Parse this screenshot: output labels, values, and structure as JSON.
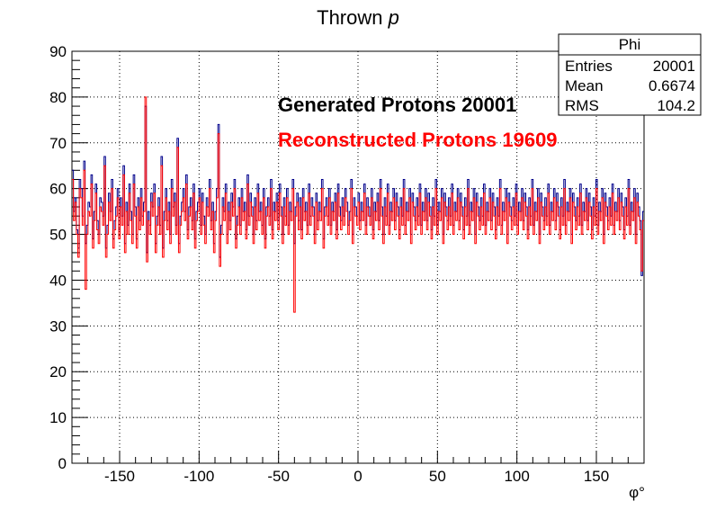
{
  "chart_data": {
    "type": "histogram",
    "title": "Thrown p",
    "title_main": "Thrown ",
    "title_italic": "p",
    "xlabel": "φ°",
    "ylabel": "",
    "xlim": [
      -180,
      180
    ],
    "ylim": [
      0,
      90
    ],
    "grid": true,
    "xticks": [
      -150,
      -100,
      -50,
      0,
      50,
      100,
      150
    ],
    "yticks": [
      0,
      10,
      20,
      30,
      40,
      50,
      60,
      70,
      80,
      90
    ],
    "bins": 360,
    "annotations": [
      {
        "text": "Generated Protons 20001",
        "color": "#000000"
      },
      {
        "text": "Reconstructed Protons 19609",
        "color": "#ff0000"
      }
    ],
    "stats_box": {
      "name": "Phi",
      "rows": [
        {
          "label": "Entries",
          "value": "20001"
        },
        {
          "label": "Mean",
          "value": "0.6674"
        },
        {
          "label": "RMS",
          "value": "104.2"
        }
      ]
    },
    "series": [
      {
        "label": "Generated Protons 20001",
        "color": "#00008b",
        "values": [
          64,
          55,
          58,
          51,
          47,
          62,
          60,
          54,
          66,
          48,
          52,
          57,
          56,
          63,
          49,
          55,
          61,
          53,
          50,
          58,
          57,
          54,
          67,
          47,
          52,
          59,
          55,
          62,
          49,
          53,
          56,
          60,
          51,
          58,
          54,
          65,
          48,
          57,
          52,
          61,
          55,
          50,
          63,
          56,
          49,
          58,
          53,
          60,
          54,
          57,
          78,
          46,
          55,
          52,
          59,
          56,
          61,
          48,
          54,
          58,
          52,
          67,
          47,
          55,
          60,
          53,
          57,
          50,
          62,
          56,
          59,
          52,
          71,
          48,
          54,
          57,
          60,
          55,
          63,
          51,
          56,
          58,
          53,
          61,
          49,
          55,
          57,
          60,
          52,
          59,
          54,
          50,
          58,
          56,
          62,
          53,
          57,
          48,
          55,
          60,
          74,
          45,
          52,
          58,
          55,
          61,
          50,
          57,
          53,
          59,
          56,
          62,
          49,
          54,
          58,
          52,
          60,
          55,
          57,
          51,
          63,
          54,
          59,
          56,
          50,
          58,
          53,
          61,
          55,
          57,
          52,
          60,
          49,
          56,
          58,
          54,
          62,
          51,
          57,
          55,
          59,
          53,
          61,
          56,
          50,
          58,
          54,
          60,
          52,
          57,
          55,
          62,
          48,
          56,
          59,
          53,
          58,
          51,
          60,
          55,
          57,
          52,
          61,
          54,
          58,
          56,
          50,
          59,
          53,
          57,
          55,
          62,
          49,
          56,
          58,
          54,
          60,
          52,
          57,
          55,
          59,
          51,
          61,
          56,
          53,
          58,
          54,
          60,
          57,
          52,
          55,
          62,
          50,
          58,
          56,
          54,
          59,
          53,
          57,
          55,
          61,
          52,
          58,
          56,
          54,
          60,
          51,
          57,
          55,
          59,
          53,
          62,
          56,
          50,
          58,
          54,
          61,
          52,
          57,
          55,
          60,
          53,
          59,
          56,
          51,
          58,
          54,
          62,
          52,
          57,
          55,
          60,
          50,
          59,
          56,
          53,
          58,
          54,
          61,
          52,
          57,
          55,
          60,
          53,
          59,
          56,
          51,
          58,
          54,
          62,
          52,
          57,
          55,
          60,
          50,
          59,
          56,
          53,
          58,
          54,
          61,
          52,
          57,
          55,
          60,
          53,
          59,
          56,
          51,
          58,
          54,
          62,
          52,
          57,
          55,
          60,
          50,
          59,
          56,
          53,
          58,
          54,
          61,
          52,
          57,
          55,
          60,
          53,
          59,
          56,
          51,
          58,
          54,
          62,
          52,
          57,
          55,
          60,
          50,
          59,
          56,
          53,
          58,
          54,
          61,
          52,
          57,
          55,
          60,
          53,
          59,
          56,
          51,
          58,
          54,
          62,
          52,
          57,
          55,
          60,
          50,
          59,
          56,
          53,
          58,
          54,
          61,
          52,
          57,
          55,
          60,
          53,
          59,
          56,
          51,
          58,
          54,
          62,
          52,
          57,
          55,
          60,
          50,
          59,
          56,
          53,
          58,
          54,
          61,
          52,
          57,
          55,
          60,
          53,
          59,
          56,
          51,
          58,
          54,
          62,
          52,
          57,
          55,
          60,
          50,
          59,
          56,
          53,
          58,
          54,
          61,
          52,
          57,
          55,
          60,
          53,
          59,
          56,
          51,
          58,
          54,
          62,
          52,
          57,
          55,
          60,
          50,
          59,
          56,
          53,
          41,
          55
        ]
      },
      {
        "label": "Reconstructed Protons 19609",
        "color": "#ff0000",
        "values": [
          62,
          53,
          57,
          50,
          45,
          60,
          58,
          52,
          64,
          38,
          50,
          55,
          54,
          61,
          47,
          53,
          59,
          51,
          48,
          56,
          55,
          52,
          65,
          45,
          50,
          57,
          53,
          60,
          47,
          51,
          54,
          58,
          49,
          56,
          52,
          63,
          46,
          55,
          50,
          59,
          53,
          48,
          61,
          54,
          47,
          56,
          51,
          58,
          52,
          55,
          80,
          44,
          53,
          50,
          57,
          54,
          59,
          46,
          52,
          56,
          50,
          65,
          45,
          53,
          58,
          51,
          55,
          48,
          60,
          54,
          57,
          50,
          69,
          46,
          52,
          55,
          58,
          53,
          61,
          49,
          54,
          56,
          51,
          59,
          47,
          53,
          55,
          58,
          50,
          57,
          52,
          48,
          56,
          54,
          60,
          51,
          55,
          46,
          53,
          58,
          72,
          43,
          50,
          56,
          53,
          59,
          48,
          55,
          51,
          57,
          54,
          60,
          47,
          52,
          56,
          50,
          58,
          53,
          55,
          49,
          61,
          52,
          57,
          54,
          48,
          56,
          51,
          59,
          53,
          55,
          50,
          58,
          47,
          54,
          56,
          52,
          60,
          49,
          55,
          53,
          57,
          51,
          59,
          54,
          48,
          56,
          52,
          58,
          50,
          55,
          53,
          60,
          33,
          54,
          57,
          51,
          56,
          49,
          58,
          53,
          55,
          50,
          59,
          52,
          56,
          54,
          48,
          57,
          51,
          55,
          53,
          60,
          47,
          54,
          56,
          52,
          58,
          50,
          55,
          53,
          57,
          49,
          59,
          54,
          51,
          56,
          52,
          58,
          55,
          50,
          53,
          60,
          48,
          56,
          54,
          52,
          57,
          51,
          55,
          53,
          59,
          50,
          56,
          54,
          52,
          58,
          49,
          55,
          53,
          57,
          51,
          60,
          54,
          48,
          56,
          52,
          59,
          50,
          55,
          53,
          58,
          51,
          57,
          54,
          49,
          56,
          52,
          60,
          50,
          55,
          53,
          58,
          48,
          57,
          54,
          51,
          56,
          52,
          59,
          50,
          55,
          53,
          58,
          51,
          57,
          54,
          49,
          56,
          52,
          60,
          50,
          55,
          53,
          58,
          48,
          57,
          54,
          51,
          56,
          52,
          59,
          50,
          55,
          53,
          58,
          51,
          57,
          54,
          49,
          56,
          52,
          60,
          50,
          55,
          53,
          58,
          48,
          57,
          54,
          51,
          56,
          52,
          59,
          50,
          55,
          53,
          58,
          51,
          57,
          54,
          49,
          56,
          52,
          60,
          50,
          55,
          53,
          58,
          48,
          57,
          54,
          51,
          56,
          52,
          59,
          50,
          55,
          53,
          58,
          51,
          57,
          54,
          49,
          56,
          52,
          60,
          50,
          55,
          53,
          58,
          48,
          57,
          54,
          51,
          56,
          52,
          59,
          50,
          55,
          53,
          58,
          51,
          57,
          54,
          49,
          56,
          52,
          60,
          50,
          55,
          53,
          58,
          48,
          57,
          54,
          51,
          56,
          52,
          59,
          50,
          55,
          53,
          58,
          51,
          57,
          54,
          49,
          56,
          52,
          60,
          50,
          55,
          53,
          58,
          48,
          57,
          54,
          51,
          56,
          52,
          59,
          50,
          55,
          53,
          58,
          51,
          57,
          54,
          49,
          56,
          52,
          60,
          50,
          55,
          53,
          58,
          48,
          57,
          54,
          51,
          42,
          53
        ]
      }
    ]
  }
}
